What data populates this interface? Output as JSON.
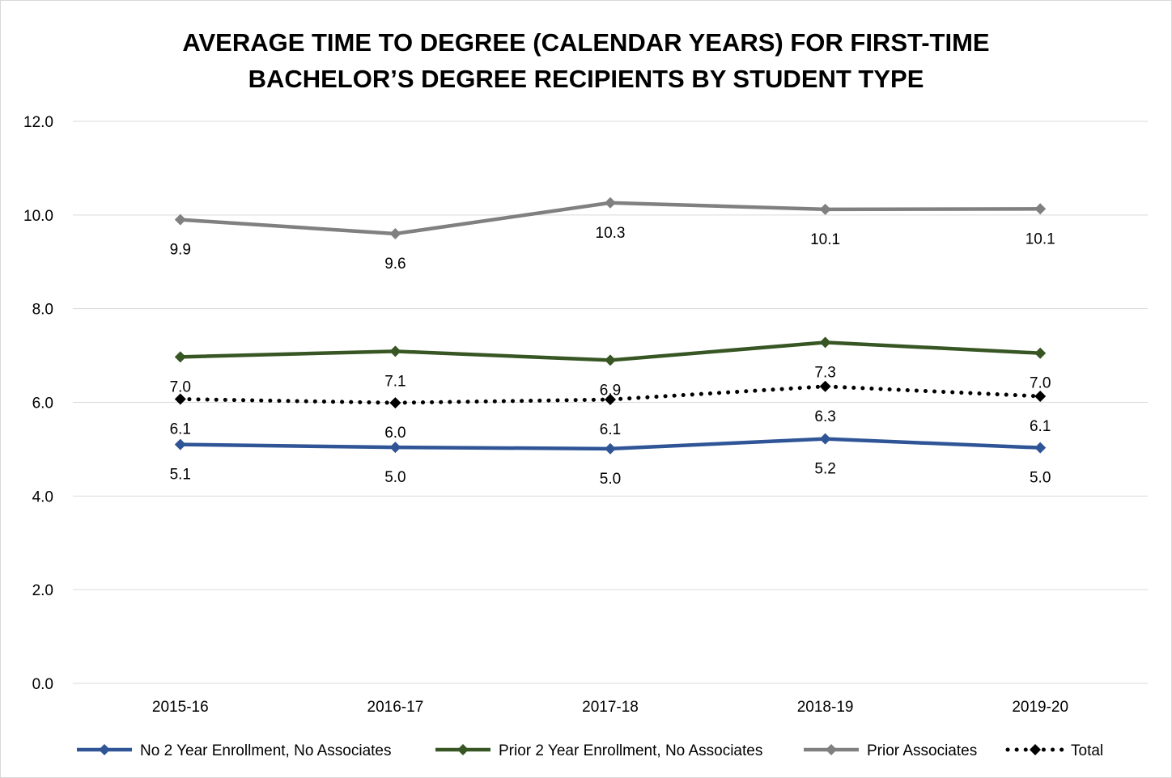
{
  "chart_data": {
    "type": "line",
    "title_lines": [
      "AVERAGE TIME TO DEGREE (CALENDAR YEARS) FOR FIRST-TIME",
      "BACHELOR’S DEGREE RECIPIENTS BY STUDENT TYPE"
    ],
    "categories": [
      "2015-16",
      "2016-17",
      "2017-18",
      "2018-19",
      "2019-20"
    ],
    "ylim": [
      0,
      12
    ],
    "yticks": [
      "0.0",
      "2.0",
      "4.0",
      "6.0",
      "8.0",
      "10.0",
      "12.0"
    ],
    "grid": true,
    "legend_position": "bottom",
    "series": [
      {
        "name": "No 2 Year Enrollment, No Associates",
        "color": "#2f5597",
        "style": "solid",
        "marker": "diamond",
        "label_position": "below",
        "values": [
          5.1,
          5.04,
          5.01,
          5.22,
          5.03
        ],
        "labels": [
          "5.1",
          "5.0",
          "5.0",
          "5.2",
          "5.0"
        ]
      },
      {
        "name": "Prior 2 Year Enrollment, No Associates",
        "color": "#375623",
        "style": "solid",
        "marker": "diamond",
        "label_position": "below",
        "values": [
          6.97,
          7.09,
          6.9,
          7.28,
          7.05
        ],
        "labels": [
          "7.0",
          "7.1",
          "6.9",
          "7.3",
          "7.0"
        ]
      },
      {
        "name": "Prior Associates",
        "color": "#808080",
        "style": "solid",
        "marker": "diamond",
        "label_position": "below",
        "values": [
          9.9,
          9.6,
          10.26,
          10.12,
          10.13
        ],
        "labels": [
          "9.9",
          "9.6",
          "10.3",
          "10.1",
          "10.1"
        ]
      },
      {
        "name": "Total",
        "color": "#000000",
        "style": "dotted",
        "marker": "diamond",
        "label_position": "below",
        "values": [
          6.07,
          5.99,
          6.06,
          6.34,
          6.13
        ],
        "labels": [
          "6.1",
          "6.0",
          "6.1",
          "6.3",
          "6.1"
        ]
      }
    ]
  }
}
